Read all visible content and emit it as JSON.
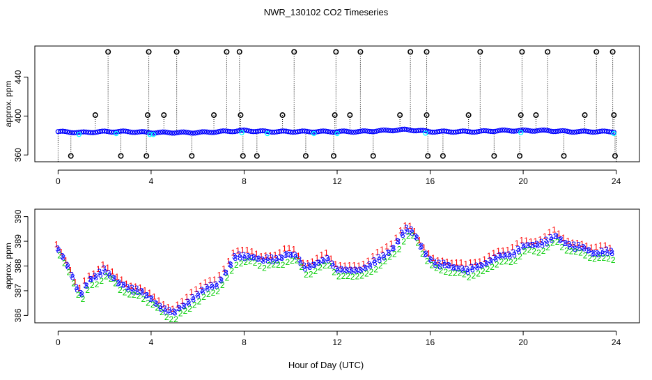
{
  "title": "NWR_130102  CO2 Timeseries",
  "chart_data": [
    {
      "type": "scatter",
      "panel": "top",
      "ylabel": "approx. ppm",
      "xlabel": "",
      "xlim": [
        -1,
        25
      ],
      "ylim": [
        353,
        472
      ],
      "x_ticks": [
        0,
        4,
        8,
        12,
        16,
        20,
        24
      ],
      "y_ticks": [
        360,
        400,
        440
      ],
      "baseline": [
        [
          0,
          384
        ],
        [
          1,
          383
        ],
        [
          2,
          384
        ],
        [
          3,
          384
        ],
        [
          4,
          383
        ],
        [
          5,
          383
        ],
        [
          6,
          383
        ],
        [
          7,
          384
        ],
        [
          8,
          385
        ],
        [
          9,
          384
        ],
        [
          10,
          384
        ],
        [
          11,
          384
        ],
        [
          12,
          384
        ],
        [
          13,
          384
        ],
        [
          14,
          385
        ],
        [
          15,
          386
        ],
        [
          16,
          384
        ],
        [
          17,
          384
        ],
        [
          18,
          384
        ],
        [
          19,
          385
        ],
        [
          20,
          385
        ],
        [
          21,
          385
        ],
        [
          22,
          384
        ],
        [
          23,
          384
        ],
        [
          24,
          384
        ]
      ],
      "spikes_high": [
        2.15,
        3.9,
        5.1,
        7.25,
        7.8,
        10.15,
        11.95,
        13.0,
        15.15,
        15.85,
        18.15,
        19.95,
        21.05,
        23.15,
        23.85
      ],
      "spikes_high_value": 466,
      "spikes_mid": [
        1.6,
        3.85,
        4.55,
        6.7,
        7.85,
        9.65,
        11.9,
        12.55,
        14.7,
        15.85,
        17.65,
        19.9,
        20.55,
        22.65,
        23.9
      ],
      "spikes_mid_value": 401,
      "spikes_low": [
        0.55,
        2.7,
        3.8,
        5.75,
        7.95,
        8.55,
        10.65,
        11.85,
        13.55,
        15.9,
        16.55,
        18.75,
        19.85,
        21.75,
        23.95
      ],
      "spikes_low_value": 359,
      "series_colors": {
        "spikes": "#000000",
        "baseline": "#0000ff",
        "alt": "#00ffff"
      }
    },
    {
      "type": "scatter",
      "panel": "bottom",
      "ylabel": "approx. ppm",
      "xlabel": "Hour of Day (UTC)",
      "xlim": [
        -1,
        25
      ],
      "ylim": [
        385.7,
        390.3
      ],
      "x_ticks": [
        0,
        4,
        8,
        12,
        16,
        20,
        24
      ],
      "y_ticks": [
        386,
        387,
        388,
        389,
        390
      ],
      "profile": [
        [
          0.0,
          388.7
        ],
        [
          0.3,
          388.1
        ],
        [
          0.55,
          387.7
        ],
        [
          0.8,
          387.2
        ],
        [
          1.0,
          387.0
        ],
        [
          1.3,
          387.4
        ],
        [
          1.6,
          387.5
        ],
        [
          2.0,
          387.9
        ],
        [
          2.3,
          387.7
        ],
        [
          2.6,
          387.3
        ],
        [
          3.0,
          387.1
        ],
        [
          3.5,
          387.1
        ],
        [
          3.8,
          386.8
        ],
        [
          4.2,
          386.5
        ],
        [
          4.6,
          386.3
        ],
        [
          5.0,
          386.1
        ],
        [
          5.4,
          386.4
        ],
        [
          5.8,
          386.8
        ],
        [
          6.3,
          387.0
        ],
        [
          6.8,
          387.3
        ],
        [
          7.2,
          387.8
        ],
        [
          7.6,
          388.3
        ],
        [
          7.9,
          388.4
        ],
        [
          8.3,
          388.5
        ],
        [
          8.8,
          388.2
        ],
        [
          9.3,
          388.3
        ],
        [
          9.8,
          388.5
        ],
        [
          10.2,
          388.4
        ],
        [
          10.6,
          388.0
        ],
        [
          11.1,
          388.1
        ],
        [
          11.6,
          388.3
        ],
        [
          12.0,
          387.9
        ],
        [
          12.5,
          387.8
        ],
        [
          13.0,
          387.9
        ],
        [
          13.5,
          388.1
        ],
        [
          14.0,
          388.4
        ],
        [
          14.4,
          388.8
        ],
        [
          14.8,
          389.3
        ],
        [
          15.1,
          389.5
        ],
        [
          15.4,
          389.2
        ],
        [
          15.7,
          388.7
        ],
        [
          16.0,
          388.3
        ],
        [
          16.3,
          388.0
        ],
        [
          16.7,
          388.1
        ],
        [
          17.1,
          388.0
        ],
        [
          17.6,
          387.8
        ],
        [
          18.0,
          388.0
        ],
        [
          18.5,
          388.2
        ],
        [
          19.0,
          388.4
        ],
        [
          19.5,
          388.5
        ],
        [
          20.0,
          388.8
        ],
        [
          20.5,
          388.9
        ],
        [
          21.0,
          389.0
        ],
        [
          21.4,
          389.2
        ],
        [
          21.8,
          389.0
        ],
        [
          22.2,
          388.8
        ],
        [
          22.6,
          388.7
        ],
        [
          23.0,
          388.6
        ],
        [
          23.5,
          388.6
        ],
        [
          23.8,
          388.5
        ]
      ],
      "series": [
        {
          "name": "1",
          "offset": 0.18,
          "color": "#ff0000"
        },
        {
          "name": "3",
          "offset": 0.0,
          "color": "#0000ff"
        },
        {
          "name": "8",
          "offset": -0.06,
          "color": "#0000ff"
        },
        {
          "name": "2",
          "offset": -0.28,
          "color": "#00cc00"
        }
      ]
    }
  ]
}
